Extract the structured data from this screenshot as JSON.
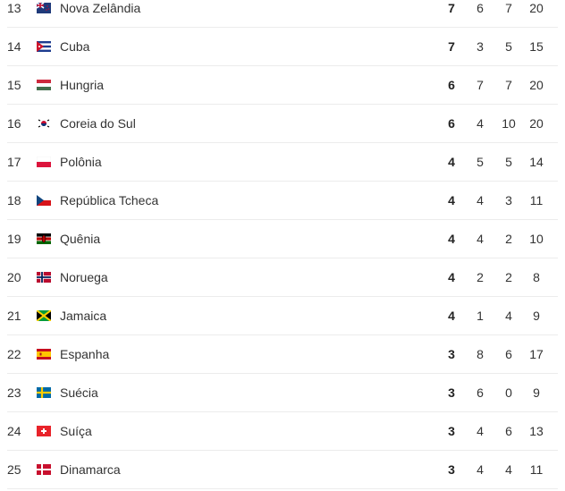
{
  "medal_table": {
    "rows": [
      {
        "rank": "13",
        "country": "Nova Zelândia",
        "flag": "new-zealand-flag",
        "gold": "7",
        "silver": "6",
        "bronze": "7",
        "total": "20"
      },
      {
        "rank": "14",
        "country": "Cuba",
        "flag": "cuba-flag",
        "gold": "7",
        "silver": "3",
        "bronze": "5",
        "total": "15"
      },
      {
        "rank": "15",
        "country": "Hungria",
        "flag": "hungary-flag",
        "gold": "6",
        "silver": "7",
        "bronze": "7",
        "total": "20"
      },
      {
        "rank": "16",
        "country": "Coreia do Sul",
        "flag": "south-korea-flag",
        "gold": "6",
        "silver": "4",
        "bronze": "10",
        "total": "20"
      },
      {
        "rank": "17",
        "country": "Polônia",
        "flag": "poland-flag",
        "gold": "4",
        "silver": "5",
        "bronze": "5",
        "total": "14"
      },
      {
        "rank": "18",
        "country": "República Tcheca",
        "flag": "czech-republic-flag",
        "gold": "4",
        "silver": "4",
        "bronze": "3",
        "total": "11"
      },
      {
        "rank": "19",
        "country": "Quênia",
        "flag": "kenya-flag",
        "gold": "4",
        "silver": "4",
        "bronze": "2",
        "total": "10"
      },
      {
        "rank": "20",
        "country": "Noruega",
        "flag": "norway-flag",
        "gold": "4",
        "silver": "2",
        "bronze": "2",
        "total": "8"
      },
      {
        "rank": "21",
        "country": "Jamaica",
        "flag": "jamaica-flag",
        "gold": "4",
        "silver": "1",
        "bronze": "4",
        "total": "9"
      },
      {
        "rank": "22",
        "country": "Espanha",
        "flag": "spain-flag",
        "gold": "3",
        "silver": "8",
        "bronze": "6",
        "total": "17"
      },
      {
        "rank": "23",
        "country": "Suécia",
        "flag": "sweden-flag",
        "gold": "3",
        "silver": "6",
        "bronze": "0",
        "total": "9"
      },
      {
        "rank": "24",
        "country": "Suíça",
        "flag": "switzerland-flag",
        "gold": "3",
        "silver": "4",
        "bronze": "6",
        "total": "13"
      },
      {
        "rank": "25",
        "country": "Dinamarca",
        "flag": "denmark-flag",
        "gold": "3",
        "silver": "4",
        "bronze": "4",
        "total": "11"
      }
    ]
  }
}
